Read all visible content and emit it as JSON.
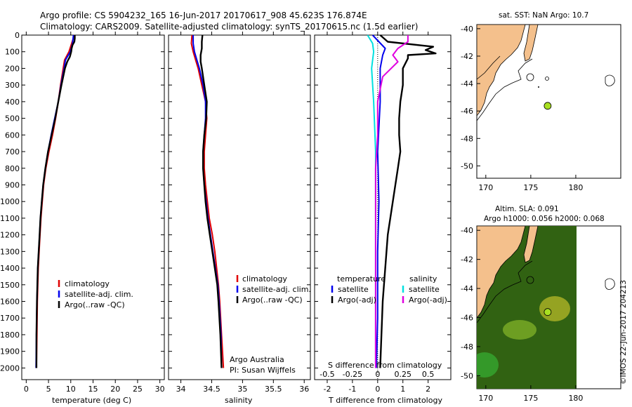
{
  "header": {
    "line1": "Argo profile: CS 5904232_165 16-Jun-2017 20170617_908 45.623S 176.874E",
    "line2": "Climatology: CARS2009. Satellite-adjusted climatology: synTS_20170615.nc (1.5d earlier)"
  },
  "colors": {
    "climatology": "#e00000",
    "satellite": "#0000ee",
    "argo": "#000000",
    "sal_satellite": "#00e0e0",
    "sal_argo": "#e000e0",
    "land": "#f4c08c",
    "marker": "#a8e020"
  },
  "chart_data": [
    {
      "type": "line",
      "id": "temperature",
      "xlabel": "temperature (deg C)",
      "ylabel": "",
      "xlim": [
        -1,
        31
      ],
      "ylim": [
        2070,
        0
      ],
      "xticks": [
        "0",
        "5",
        "10",
        "15",
        "20",
        "25",
        "30"
      ],
      "yticks": [
        "0",
        "100",
        "200",
        "300",
        "400",
        "500",
        "600",
        "700",
        "800",
        "900",
        "1000",
        "1100",
        "1200",
        "1300",
        "1400",
        "1500",
        "1600",
        "1700",
        "1800",
        "1900",
        "2000"
      ],
      "legend": [
        "climatology",
        "satellite-adj. clim.",
        "Argo(..raw -QC)"
      ],
      "series": [
        {
          "name": "climatology",
          "depth": [
            0,
            50,
            100,
            150,
            200,
            300,
            400,
            500,
            600,
            700,
            800,
            900,
            1000,
            1100,
            1200,
            1300,
            1400,
            1600,
            1800,
            2000
          ],
          "values": [
            10.8,
            10.2,
            9.6,
            8.6,
            8.3,
            7.7,
            7.2,
            6.6,
            5.9,
            5.1,
            4.4,
            3.9,
            3.6,
            3.3,
            3.1,
            2.9,
            2.7,
            2.5,
            2.4,
            2.3
          ]
        },
        {
          "name": "satellite-adj. clim.",
          "depth": [
            0,
            50,
            100,
            150,
            200,
            300,
            400,
            500,
            600,
            700,
            800,
            900,
            1000,
            1100,
            1200,
            1300,
            1400,
            1600,
            1800,
            2000
          ],
          "values": [
            10.6,
            10.4,
            9.9,
            8.8,
            8.5,
            7.8,
            7.2,
            6.4,
            5.6,
            4.9,
            4.3,
            3.8,
            3.5,
            3.2,
            3.0,
            2.8,
            2.6,
            2.4,
            2.3,
            2.2
          ]
        },
        {
          "name": "Argo(..raw -QC)",
          "depth": [
            0,
            20,
            40,
            60,
            80,
            100,
            130,
            160,
            200,
            300,
            400,
            500,
            600,
            700,
            800,
            900,
            1000,
            1100,
            1200,
            1300,
            1400,
            1600,
            1800,
            2000
          ],
          "values": [
            10.9,
            10.9,
            10.8,
            10.4,
            10.2,
            10.1,
            9.8,
            9.2,
            8.7,
            7.9,
            7.2,
            6.5,
            5.7,
            4.9,
            4.3,
            3.8,
            3.5,
            3.2,
            3.0,
            2.8,
            2.6,
            2.4,
            2.3,
            2.3
          ]
        }
      ]
    },
    {
      "type": "line",
      "id": "salinity",
      "xlabel": "salinity",
      "xlim": [
        33.8,
        36.1
      ],
      "ylim": [
        2070,
        0
      ],
      "xticks": [
        "34",
        "34.5",
        "35",
        "35.5",
        "36"
      ],
      "legend": [
        "climatology",
        "satellite-adj. clim.",
        "Argo(..raw -QC)"
      ],
      "annotation": [
        "Argo Australia",
        "PI: Susan Wijffels"
      ],
      "series": [
        {
          "name": "climatology",
          "depth": [
            0,
            50,
            100,
            150,
            200,
            300,
            400,
            500,
            600,
            700,
            800,
            900,
            1000,
            1100,
            1200,
            1300,
            1400,
            1500,
            1600,
            1800,
            2000
          ],
          "values": [
            34.18,
            34.17,
            34.2,
            34.24,
            34.28,
            34.34,
            34.4,
            34.42,
            34.4,
            34.38,
            34.38,
            34.4,
            34.43,
            34.46,
            34.51,
            34.55,
            34.58,
            34.61,
            34.63,
            34.66,
            34.69
          ]
        },
        {
          "name": "satellite-adj. clim.",
          "depth": [
            0,
            50,
            100,
            150,
            200,
            300,
            400,
            500,
            600,
            700,
            800,
            900,
            1000,
            1100,
            1200,
            1300,
            1400,
            1500,
            1600,
            1800,
            2000
          ],
          "values": [
            34.2,
            34.2,
            34.22,
            34.26,
            34.3,
            34.36,
            34.4,
            34.4,
            34.38,
            34.36,
            34.36,
            34.38,
            34.41,
            34.44,
            34.48,
            34.52,
            34.56,
            34.6,
            34.62,
            34.65,
            34.66
          ]
        },
        {
          "name": "Argo(..raw -QC)",
          "depth": [
            0,
            40,
            80,
            120,
            160,
            200,
            300,
            400,
            500,
            600,
            700,
            800,
            900,
            1000,
            1100,
            1200,
            1300,
            1400,
            1500,
            1600,
            1800,
            2000
          ],
          "values": [
            34.35,
            34.34,
            34.34,
            34.32,
            34.32,
            34.34,
            34.38,
            34.42,
            34.41,
            34.38,
            34.36,
            34.36,
            34.38,
            34.4,
            34.43,
            34.47,
            34.51,
            34.55,
            34.59,
            34.61,
            34.64,
            34.66
          ]
        }
      ]
    },
    {
      "type": "line",
      "id": "difference",
      "xlabel": "T difference from climatology",
      "xlabel_top": "S difference from climatology",
      "xlim": [
        -2.5,
        2.9
      ],
      "ylim": [
        2070,
        0
      ],
      "xticks": [
        "-2",
        "-1",
        "0",
        "1",
        "2"
      ],
      "sticks": [
        "-0.5",
        "-0.25",
        "0",
        "0.25",
        "0.5"
      ],
      "legend": {
        "temperature": [
          "satellite",
          "Argo(-adj)"
        ],
        "salinity": [
          "satellite",
          "Argo(-adj)"
        ]
      },
      "headings": [
        "temperature",
        "salinity"
      ],
      "series": [
        {
          "name": "T satellite",
          "depth": [
            0,
            40,
            80,
            120,
            200,
            400,
            700,
            1000,
            1300,
            1700,
            2000
          ],
          "values": [
            -0.2,
            0.05,
            0.3,
            0.2,
            0.1,
            0.1,
            0.0,
            0.05,
            0.0,
            0.0,
            -0.05
          ]
        },
        {
          "name": "T Argo(-adj)",
          "depth": [
            0,
            40,
            70,
            90,
            110,
            120,
            140,
            200,
            300,
            400,
            500,
            600,
            700,
            800,
            900,
            1000,
            1100,
            1200,
            1400,
            1600,
            1800,
            2000
          ],
          "values": [
            0.1,
            0.4,
            2.2,
            1.9,
            2.3,
            1.2,
            1.2,
            1.0,
            1.0,
            0.9,
            0.85,
            0.85,
            0.9,
            0.8,
            0.7,
            0.6,
            0.5,
            0.4,
            0.3,
            0.2,
            0.15,
            0.1
          ]
        },
        {
          "name": "S satellite",
          "depth": [
            0,
            50,
            100,
            200,
            400,
            700,
            1000,
            1300,
            1600,
            2000
          ],
          "values": [
            -0.1,
            -0.05,
            -0.04,
            -0.06,
            -0.04,
            -0.02,
            -0.02,
            -0.02,
            -0.02,
            -0.02
          ]
        },
        {
          "name": "S Argo(-adj)",
          "depth": [
            0,
            40,
            80,
            120,
            160,
            250,
            400,
            600,
            800,
            1000,
            1200,
            1500,
            1800,
            2000
          ],
          "values": [
            0.3,
            0.3,
            0.2,
            0.15,
            0.2,
            0.05,
            0.0,
            0.0,
            -0.02,
            -0.02,
            -0.02,
            -0.02,
            -0.02,
            -0.02
          ]
        }
      ]
    },
    {
      "type": "scatter",
      "id": "sst-map",
      "title": "sat. SST: NaN Argo: 10.7",
      "xlim": [
        169,
        185
      ],
      "ylim": [
        -50.9,
        -39.7
      ],
      "xticks": [
        "170",
        "175",
        "180"
      ],
      "yticks": [
        "-40",
        "-42",
        "-44",
        "-46",
        "-48",
        "-50"
      ],
      "points": [
        {
          "lon": 176.874,
          "lat": -45.623,
          "label": "Argo"
        }
      ]
    },
    {
      "type": "heatmap",
      "id": "sla-map",
      "title": "Altim. SLA: 0.091",
      "subtitle": "Argo h1000: 0.056 h2000: 0.068",
      "xlim": [
        169,
        185
      ],
      "ylim": [
        -50.9,
        -39.7
      ],
      "xticks": [
        "170",
        "175",
        "180"
      ],
      "yticks": [
        "-40",
        "-42",
        "-44",
        "-46",
        "-48",
        "-50"
      ],
      "points": [
        {
          "lon": 176.874,
          "lat": -45.623,
          "label": "Argo"
        }
      ]
    }
  ],
  "credit": "©IMOS 22-Jun-2017 204213"
}
